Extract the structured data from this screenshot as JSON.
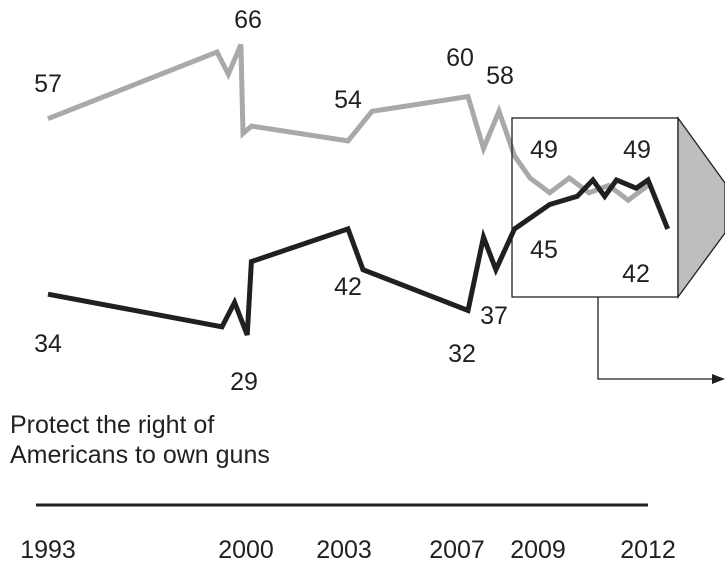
{
  "chart_data": {
    "type": "line",
    "title": "",
    "xlabel": "",
    "ylabel": "",
    "ylim": [
      20,
      70
    ],
    "x_tick_labels": [
      "1993",
      "2000",
      "2003",
      "2007",
      "2009",
      "2012"
    ],
    "series": [
      {
        "name": "",
        "color": "#a7a9ac",
        "points": [
          {
            "x": 1993.0,
            "y": 57
          },
          {
            "x": 1999.8,
            "y": 66
          },
          {
            "x": 2000.15,
            "y": 63
          },
          {
            "x": 2000.45,
            "y": 67
          },
          {
            "x": 2000.5,
            "y": 55
          },
          {
            "x": 2000.7,
            "y": 56
          },
          {
            "x": 2003.0,
            "y": 54
          },
          {
            "x": 2003.8,
            "y": 58
          },
          {
            "x": 2007.0,
            "y": 60
          },
          {
            "x": 2007.5,
            "y": 53
          },
          {
            "x": 2008.0,
            "y": 58
          },
          {
            "x": 2008.5,
            "y": 52
          },
          {
            "x": 2009.0,
            "y": 49
          },
          {
            "x": 2009.5,
            "y": 47
          },
          {
            "x": 2010.0,
            "y": 49
          },
          {
            "x": 2010.5,
            "y": 47
          },
          {
            "x": 2011.0,
            "y": 48
          },
          {
            "x": 2011.5,
            "y": 46
          },
          {
            "x": 2012.0,
            "y": 48
          }
        ]
      },
      {
        "name": "Protect the right of Americans to own guns",
        "color": "#231f20",
        "points": [
          {
            "x": 1993.0,
            "y": 34
          },
          {
            "x": 2000.0,
            "y": 30
          },
          {
            "x": 2000.3,
            "y": 33
          },
          {
            "x": 2000.6,
            "y": 29
          },
          {
            "x": 2000.7,
            "y": 38
          },
          {
            "x": 2003.0,
            "y": 42
          },
          {
            "x": 2003.5,
            "y": 37
          },
          {
            "x": 2007.0,
            "y": 32
          },
          {
            "x": 2007.5,
            "y": 41
          },
          {
            "x": 2007.9,
            "y": 37
          },
          {
            "x": 2008.5,
            "y": 42
          },
          {
            "x": 2009.5,
            "y": 45
          },
          {
            "x": 2010.2,
            "y": 46
          },
          {
            "x": 2010.6,
            "y": 48
          },
          {
            "x": 2010.9,
            "y": 46
          },
          {
            "x": 2011.2,
            "y": 48
          },
          {
            "x": 2011.7,
            "y": 47
          },
          {
            "x": 2012.0,
            "y": 48
          },
          {
            "x": 2012.5,
            "y": 42
          }
        ]
      }
    ],
    "data_labels": [
      "57",
      "66",
      "54",
      "60",
      "58",
      "49",
      "49",
      "34",
      "29",
      "42",
      "32",
      "37",
      "45",
      "42"
    ]
  },
  "series_label_lines": [
    "Protect the right of",
    "Americans to own guns"
  ]
}
